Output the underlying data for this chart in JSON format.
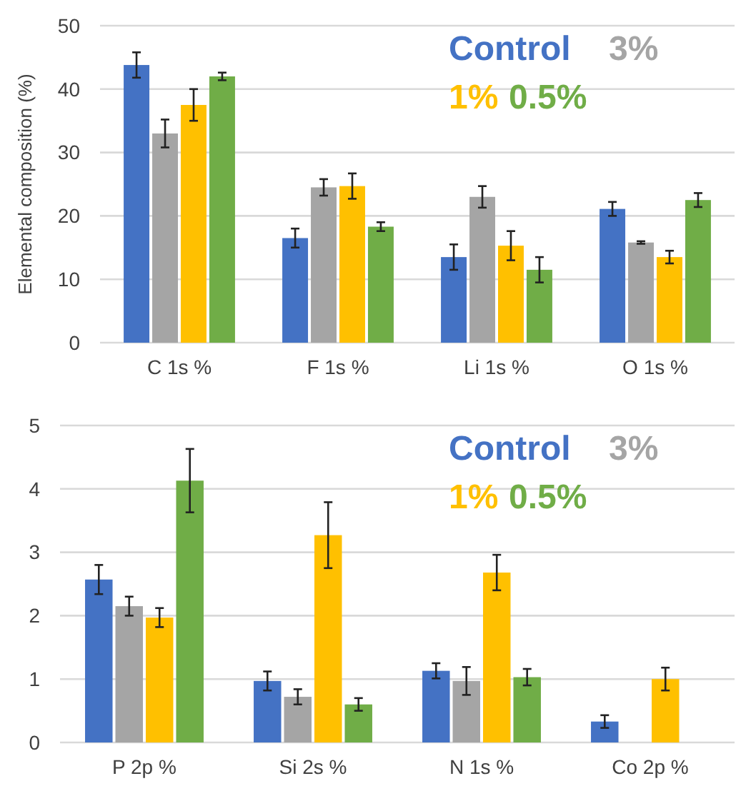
{
  "chart_data": [
    {
      "type": "bar",
      "ylabel": "Elemental composition (%)",
      "categories": [
        "C 1s %",
        "F 1s %",
        "Li 1s %",
        "O 1s %"
      ],
      "ylim": [
        0,
        50
      ],
      "yticks": [
        0,
        10,
        20,
        30,
        40,
        50
      ],
      "grid": "y",
      "legend": "top right",
      "series": [
        {
          "name": "Control",
          "color": "#4472c4",
          "values": [
            43.8,
            16.5,
            13.5,
            21.1
          ],
          "errors": [
            2,
            1.5,
            2,
            1.1
          ]
        },
        {
          "name": "3%",
          "color": "#a5a5a5",
          "values": [
            33,
            24.5,
            23,
            15.8
          ],
          "errors": [
            2.2,
            1.3,
            1.7,
            0.2
          ]
        },
        {
          "name": "1%",
          "color": "#ffc000",
          "values": [
            37.5,
            24.7,
            15.3,
            13.5
          ],
          "errors": [
            2.5,
            2,
            2.3,
            1
          ]
        },
        {
          "name": "0.5%",
          "color": "#70ad47",
          "values": [
            42,
            18.3,
            11.5,
            22.5
          ],
          "errors": [
            0.6,
            0.7,
            2,
            1.1
          ]
        }
      ]
    },
    {
      "type": "bar",
      "categories": [
        "P 2p %",
        "Si 2s %",
        "N 1s %",
        "Co 2p %"
      ],
      "ylim": [
        0,
        5
      ],
      "yticks": [
        0,
        1,
        2,
        3,
        4,
        5
      ],
      "grid": "y",
      "legend": "top right",
      "series": [
        {
          "name": "Control",
          "color": "#4472c4",
          "values": [
            2.57,
            0.97,
            1.13,
            0.33
          ],
          "errors": [
            0.23,
            0.15,
            0.12,
            0.1
          ]
        },
        {
          "name": "3%",
          "color": "#a5a5a5",
          "values": [
            2.15,
            0.72,
            0.97,
            null
          ],
          "errors": [
            0.15,
            0.12,
            0.22,
            null
          ]
        },
        {
          "name": "1%",
          "color": "#ffc000",
          "values": [
            1.97,
            3.27,
            2.68,
            1.0
          ],
          "errors": [
            0.15,
            0.52,
            0.28,
            0.18
          ]
        },
        {
          "name": "0.5%",
          "color": "#70ad47",
          "values": [
            4.13,
            0.6,
            1.03,
            null
          ],
          "errors": [
            0.5,
            0.1,
            0.13,
            null
          ]
        }
      ]
    }
  ]
}
